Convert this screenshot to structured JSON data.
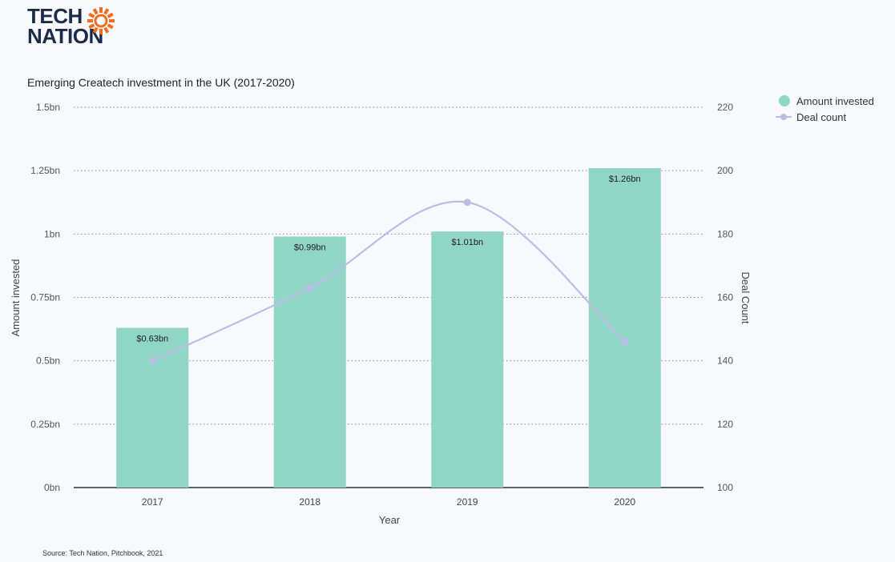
{
  "brand": {
    "line1": "TECH",
    "line2": "NATION",
    "logo_color": "#1c2b4a",
    "sun_color": "#f26c21"
  },
  "chart_data": {
    "type": "bar",
    "title": "Emerging Createch investment in the UK (2017-2020)",
    "xlabel": "Year",
    "ylabel": "Amount invested",
    "y2label": "Deal Count",
    "categories": [
      "2017",
      "2018",
      "2019",
      "2020"
    ],
    "y_ticks": [
      "0bn",
      "0.25bn",
      "0.5bn",
      "0.75bn",
      "1bn",
      "1.25bn",
      "1.5bn"
    ],
    "ylim": [
      0,
      1.5
    ],
    "y2_ticks": [
      "100",
      "120",
      "140",
      "160",
      "180",
      "200",
      "220"
    ],
    "y2lim": [
      100,
      220
    ],
    "grid": true,
    "legend_position": "top-right",
    "series": [
      {
        "name": "Amount invested",
        "type": "bar",
        "axis": "left",
        "color": "#90d5c6",
        "values": [
          0.63,
          0.99,
          1.01,
          1.26
        ],
        "labels": [
          "$0.63bn",
          "$0.99bn",
          "$1.01bn",
          "$1.26bn"
        ]
      },
      {
        "name": "Deal count",
        "type": "line",
        "axis": "right",
        "color": "#bcbde6",
        "values": [
          140,
          163,
          190,
          146
        ]
      }
    ]
  },
  "source": "Source: Tech Nation, Pitchbook, 2021"
}
